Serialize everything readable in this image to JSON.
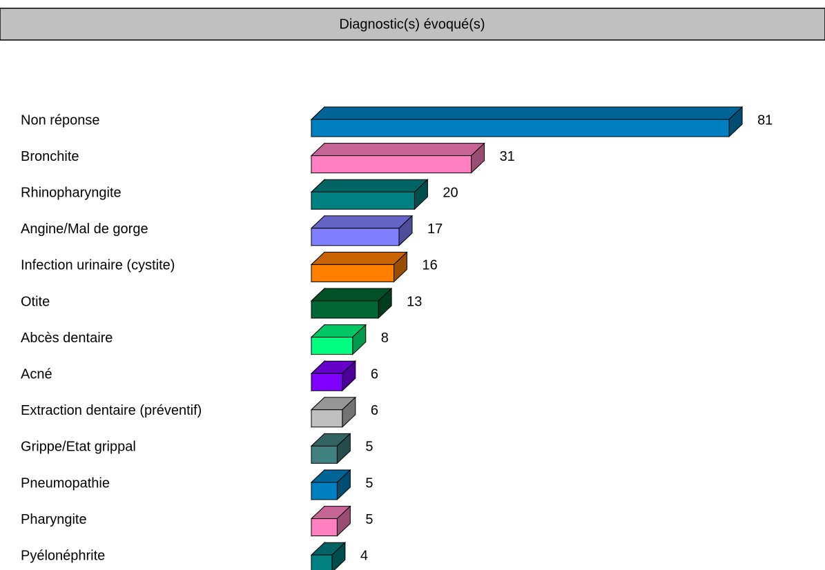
{
  "chart_data": {
    "type": "bar3d",
    "title": "Diagnostic(s) évoqué(s)",
    "categories": [
      "Non réponse",
      "Bronchite",
      "Rhinopharyngite",
      "Angine/Mal de gorge",
      "Infection urinaire (cystite)",
      "Otite",
      "Abcès dentaire",
      "Acné",
      "Extraction dentaire (préventif)",
      "Grippe/Etat grippal",
      "Pneumopathie",
      "Pharyngite",
      "Pyélonéphrite"
    ],
    "values": [
      81,
      31,
      20,
      17,
      16,
      13,
      8,
      6,
      6,
      5,
      5,
      5,
      4
    ],
    "colors": [
      "#0080c0",
      "#ff80c0",
      "#008080",
      "#8080ff",
      "#ff8000",
      "#006633",
      "#00ff80",
      "#8000ff",
      "#c0c0c0",
      "#408080",
      "#0080c0",
      "#ff80c0",
      "#008080"
    ]
  }
}
